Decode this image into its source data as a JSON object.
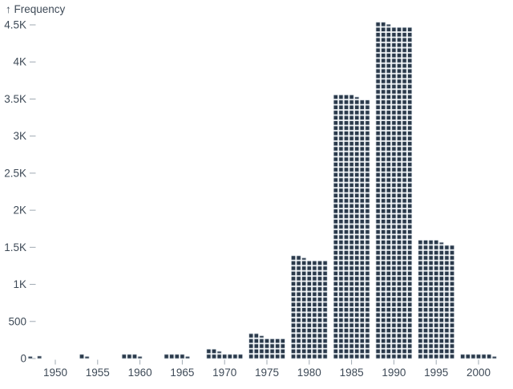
{
  "header": {
    "y_axis_label": "↑ Frequency"
  },
  "chart_data": {
    "type": "bar",
    "subtype": "waffle-histogram",
    "title": "",
    "xlabel": "",
    "ylabel": "Frequency",
    "y_axis_label_display": "↑ Frequency",
    "x_domain": [
      1942.5,
      2002.5
    ],
    "y_domain": [
      0,
      4500
    ],
    "grid": false,
    "legend": "none",
    "unit_per_square": 10,
    "columns_per_bar": 7,
    "bin_width_years": 5,
    "x_ticks": [
      1950,
      1955,
      1960,
      1965,
      1970,
      1975,
      1980,
      1985,
      1990,
      1995,
      2000
    ],
    "y_ticks": [
      {
        "value": 0,
        "label": "0"
      },
      {
        "value": 500,
        "label": "500"
      },
      {
        "value": 1000,
        "label": "1K"
      },
      {
        "value": 1500,
        "label": "1.5K"
      },
      {
        "value": 2000,
        "label": "2K"
      },
      {
        "value": 2500,
        "label": "2.5K"
      },
      {
        "value": 3000,
        "label": "3K"
      },
      {
        "value": 3500,
        "label": "3.5K"
      },
      {
        "value": 4000,
        "label": "4K"
      },
      {
        "value": 4500,
        "label": "4.5K"
      }
    ],
    "bins": [
      {
        "year": 1945,
        "count": 5
      },
      {
        "year": 1950,
        "count": 6
      },
      {
        "year": 1955,
        "count": 15
      },
      {
        "year": 1960,
        "count": 35
      },
      {
        "year": 1965,
        "count": 45
      },
      {
        "year": 1970,
        "count": 95
      },
      {
        "year": 1975,
        "count": 305
      },
      {
        "year": 1980,
        "count": 1355
      },
      {
        "year": 1985,
        "count": 3545
      },
      {
        "year": 1990,
        "count": 4505
      },
      {
        "year": 1995,
        "count": 1585
      },
      {
        "year": 2000,
        "count": 65
      }
    ],
    "colors": {
      "square": "#2b3a4b",
      "square_edge": "#c3ccd4",
      "label_text": "#3e4a57",
      "tick_mark": "#9fa9b2",
      "background": "#ffffff"
    }
  }
}
